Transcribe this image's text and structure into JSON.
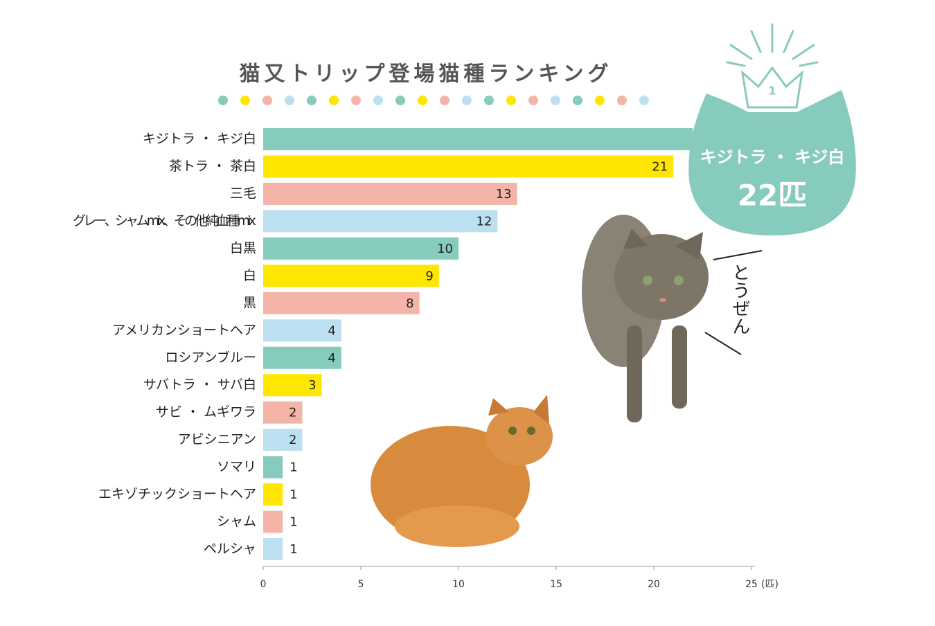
{
  "chart_data": {
    "type": "hbar",
    "title": "猫又トリップ登場猫種ランキング",
    "categories": [
      "キジトラ ・ キジ白",
      "茶トラ ・ 茶白",
      "三毛",
      "グレー、シャムmix、その他純血種mix",
      "白黒",
      "白",
      "黒",
      "アメリカンショートヘア",
      "ロシアンブルー",
      "サバトラ ・ サバ白",
      "サビ ・ ムギワラ",
      "アビシニアン",
      "ソマリ",
      "エキゾチックショートヘア",
      "シャム",
      "ペルシャ"
    ],
    "values": [
      22,
      21,
      13,
      12,
      10,
      9,
      8,
      4,
      4,
      3,
      2,
      2,
      1,
      1,
      1,
      1
    ],
    "value_labels": [
      "22匹",
      "21",
      "13",
      "12",
      "10",
      "9",
      "8",
      "4",
      "4",
      "3",
      "2",
      "2",
      "1",
      "1",
      "1",
      "1"
    ],
    "colors": [
      "#86cbbd",
      "#ffe600",
      "#f4b5a8",
      "#bde0f0",
      "#86cbbd",
      "#ffe600",
      "#f4b5a8",
      "#bde0f0",
      "#86cbbd",
      "#ffe600",
      "#f4b5a8",
      "#bde0f0",
      "#86cbbd",
      "#ffe600",
      "#f4b5a8",
      "#bde0f0"
    ],
    "xlim": [
      0,
      25
    ],
    "xticks": [
      0,
      5,
      10,
      15,
      20,
      25
    ],
    "x_unit": "(匹)",
    "badge_rank": "1",
    "annotation": "とうぜん"
  }
}
